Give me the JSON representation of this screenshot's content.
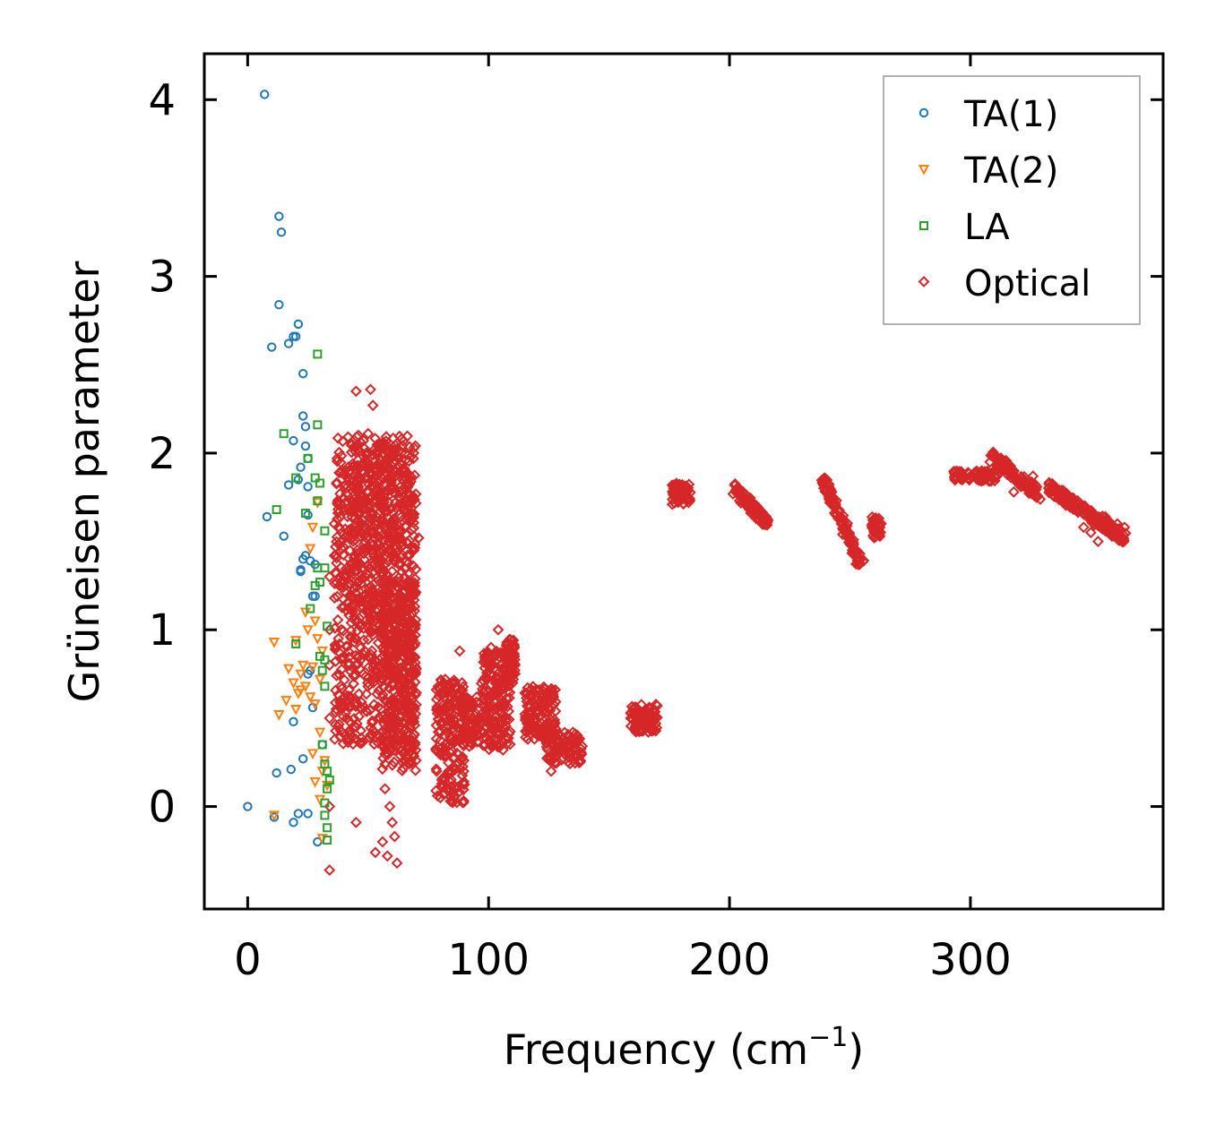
{
  "chart_data": {
    "type": "scatter",
    "title": "",
    "xlabel": "Frequency (cm",
    "xlabel_sup": "−1",
    "xlabel_close": ")",
    "ylabel": "Grüneisen parameter",
    "xlim": [
      -18,
      380
    ],
    "ylim": [
      -0.58,
      4.26
    ],
    "x_ticks": [
      0,
      100,
      200,
      300
    ],
    "x_tick_labels": [
      "0",
      "100",
      "200",
      "300"
    ],
    "y_ticks": [
      0,
      1,
      2,
      3,
      4
    ],
    "y_tick_labels": [
      "0",
      "1",
      "2",
      "3",
      "4"
    ],
    "grid": false,
    "legend_position": "top-right",
    "series": [
      {
        "name": "TA(1)",
        "marker": "circle",
        "color": "#1f77b4",
        "points": [
          [
            7,
            4.03
          ],
          [
            13,
            3.34
          ],
          [
            14,
            3.25
          ],
          [
            13,
            2.84
          ],
          [
            21,
            2.73
          ],
          [
            19,
            2.66
          ],
          [
            20,
            2.66
          ],
          [
            17,
            2.62
          ],
          [
            10,
            2.6
          ],
          [
            23,
            2.45
          ],
          [
            23,
            2.21
          ],
          [
            24,
            2.15
          ],
          [
            19,
            2.07
          ],
          [
            24,
            2.04
          ],
          [
            25,
            1.97
          ],
          [
            22,
            1.92
          ],
          [
            21,
            1.85
          ],
          [
            17,
            1.82
          ],
          [
            25,
            1.81
          ],
          [
            8,
            1.64
          ],
          [
            25,
            1.65
          ],
          [
            15,
            1.53
          ],
          [
            24,
            1.42
          ],
          [
            26,
            1.39
          ],
          [
            23,
            1.4
          ],
          [
            28,
            1.37
          ],
          [
            22,
            1.34
          ],
          [
            22,
            1.33
          ],
          [
            27,
            1.19
          ],
          [
            28,
            1.19
          ],
          [
            26,
            0.77
          ],
          [
            25,
            0.75
          ],
          [
            27,
            0.56
          ],
          [
            19,
            0.48
          ],
          [
            23,
            0.27
          ],
          [
            18,
            0.21
          ],
          [
            12,
            0.19
          ],
          [
            0,
            0.0
          ],
          [
            25,
            -0.04
          ],
          [
            21,
            -0.04
          ],
          [
            11,
            -0.06
          ],
          [
            19,
            -0.09
          ],
          [
            29,
            -0.2
          ],
          [
            31,
            0.35
          ]
        ]
      },
      {
        "name": "TA(2)",
        "marker": "triangle-down",
        "color": "#ff7f0e",
        "points": [
          [
            11,
            0.93
          ],
          [
            20,
            0.94
          ],
          [
            25,
            1.0
          ],
          [
            29,
            0.95
          ],
          [
            17,
            0.78
          ],
          [
            22,
            0.75
          ],
          [
            27,
            0.79
          ],
          [
            19,
            0.7
          ],
          [
            24,
            0.68
          ],
          [
            30,
            0.72
          ],
          [
            16,
            0.6
          ],
          [
            21,
            0.64
          ],
          [
            26,
            0.62
          ],
          [
            13,
            0.52
          ],
          [
            20,
            0.55
          ],
          [
            28,
            0.58
          ],
          [
            31,
            0.88
          ],
          [
            26,
            1.46
          ],
          [
            27,
            1.58
          ],
          [
            29,
            1.72
          ],
          [
            24,
            1.1
          ],
          [
            28,
            1.05
          ],
          [
            30,
            0.42
          ],
          [
            27,
            0.3
          ],
          [
            31,
            0.2
          ],
          [
            28,
            0.14
          ],
          [
            30,
            0.04
          ],
          [
            31,
            -0.18
          ],
          [
            11,
            -0.05
          ],
          [
            33,
            0.12
          ],
          [
            32,
            0.26
          ],
          [
            23,
            0.8
          ],
          [
            22,
            0.66
          ]
        ]
      },
      {
        "name": "LA",
        "marker": "square",
        "color": "#2ca02c",
        "points": [
          [
            29,
            2.56
          ],
          [
            29,
            2.16
          ],
          [
            15,
            2.11
          ],
          [
            25,
            1.97
          ],
          [
            20,
            1.86
          ],
          [
            28,
            1.86
          ],
          [
            30,
            1.83
          ],
          [
            12,
            1.68
          ],
          [
            24,
            1.66
          ],
          [
            29,
            1.73
          ],
          [
            32,
            1.56
          ],
          [
            29,
            1.35
          ],
          [
            32,
            1.35
          ],
          [
            30,
            1.27
          ],
          [
            28,
            1.25
          ],
          [
            26,
            1.12
          ],
          [
            33,
            1.02
          ],
          [
            20,
            0.92
          ],
          [
            30,
            0.85
          ],
          [
            32,
            0.83
          ],
          [
            31,
            0.77
          ],
          [
            32,
            0.68
          ],
          [
            31,
            0.35
          ],
          [
            32,
            0.24
          ],
          [
            33,
            0.2
          ],
          [
            33,
            0.1
          ],
          [
            34,
            0.15
          ],
          [
            32,
            0.02
          ],
          [
            32,
            -0.05
          ],
          [
            33,
            -0.12
          ],
          [
            33,
            -0.19
          ]
        ]
      },
      {
        "name": "Optical",
        "marker": "diamond",
        "color": "#d62728",
        "points": [
          [
            45,
            2.35
          ],
          [
            51,
            2.36
          ],
          [
            52,
            2.27
          ],
          [
            46,
            2.1
          ],
          [
            50,
            2.11
          ],
          [
            55,
            2.05
          ],
          [
            61,
            1.99
          ],
          [
            58,
            1.93
          ],
          [
            64,
            1.88
          ],
          [
            64,
            1.79
          ],
          [
            42,
            1.67
          ],
          [
            36,
            1.42
          ],
          [
            38,
            1.25
          ],
          [
            40,
            1.13
          ],
          [
            71,
            1.52
          ],
          [
            69,
            1.45
          ],
          [
            66,
            1.39
          ],
          [
            68,
            1.21
          ],
          [
            65,
            1.1
          ],
          [
            45,
            0.95
          ],
          [
            56,
            0.97
          ],
          [
            60,
            0.92
          ],
          [
            42,
            0.8
          ],
          [
            48,
            0.75
          ],
          [
            56,
            0.78
          ],
          [
            70,
            0.78
          ],
          [
            58,
            0.71
          ],
          [
            45,
            0.59
          ],
          [
            45,
            0.45
          ],
          [
            61,
            0.53
          ],
          [
            69,
            0.48
          ],
          [
            45,
            0.38
          ],
          [
            57,
            0.44
          ],
          [
            59,
            0.41
          ],
          [
            64,
            0.36
          ],
          [
            58,
            0.3
          ],
          [
            66,
            0.28
          ],
          [
            57,
            0.24
          ],
          [
            57,
            0.1
          ],
          [
            59,
            0.0
          ],
          [
            60,
            -0.09
          ],
          [
            45,
            -0.09
          ],
          [
            61,
            -0.17
          ],
          [
            56,
            -0.2
          ],
          [
            53,
            -0.26
          ],
          [
            58,
            -0.28
          ],
          [
            62,
            -0.32
          ],
          [
            34,
            -0.36
          ],
          [
            34,
            0.0
          ],
          [
            34,
            0.5
          ],
          [
            34,
            0.8
          ],
          [
            34,
            1.0
          ],
          [
            34,
            1.3
          ],
          [
            36,
            1.6
          ],
          [
            82,
            0.72
          ],
          [
            84,
            0.58
          ],
          [
            86,
            0.46
          ],
          [
            80,
            0.3
          ],
          [
            81,
            0.16
          ],
          [
            80,
            0.05
          ],
          [
            83,
            0.1
          ],
          [
            88,
            0.88
          ],
          [
            91,
            0.43
          ],
          [
            92,
            0.34
          ],
          [
            89,
            0.7
          ],
          [
            96,
            0.49
          ],
          [
            99,
            0.6
          ],
          [
            102,
            0.55
          ],
          [
            101,
            0.9
          ],
          [
            104,
            1.0
          ],
          [
            105,
            0.87
          ],
          [
            108,
            0.82
          ],
          [
            111,
            0.8
          ],
          [
            110,
            0.7
          ],
          [
            101,
            0.42
          ],
          [
            104,
            0.38
          ],
          [
            106,
            0.32
          ],
          [
            121,
            0.66
          ],
          [
            117,
            0.57
          ],
          [
            125,
            0.56
          ],
          [
            116,
            0.47
          ],
          [
            119,
            0.42
          ],
          [
            124,
            0.38
          ],
          [
            126,
            0.2
          ],
          [
            130,
            0.33
          ],
          [
            137,
            0.38
          ],
          [
            133,
            0.34
          ],
          [
            160,
            0.55
          ],
          [
            163,
            0.52
          ],
          [
            166,
            0.49
          ],
          [
            165,
            0.44
          ],
          [
            178,
            1.8
          ],
          [
            180,
            1.78
          ],
          [
            182,
            1.74
          ],
          [
            204,
            1.8
          ],
          [
            208,
            1.74
          ],
          [
            213,
            1.66
          ],
          [
            216,
            1.62
          ],
          [
            239,
            1.84
          ],
          [
            243,
            1.7
          ],
          [
            247,
            1.54
          ],
          [
            251,
            1.45
          ],
          [
            254,
            1.37
          ],
          [
            260,
            1.56
          ],
          [
            262,
            1.63
          ],
          [
            295,
            1.88
          ],
          [
            300,
            1.87
          ],
          [
            305,
            1.86
          ],
          [
            310,
            1.97
          ],
          [
            314,
            1.95
          ],
          [
            318,
            1.9
          ],
          [
            322,
            1.83
          ],
          [
            326,
            1.87
          ],
          [
            334,
            1.79
          ],
          [
            340,
            1.72
          ],
          [
            344,
            1.68
          ],
          [
            347,
            1.58
          ],
          [
            350,
            1.55
          ],
          [
            353,
            1.5
          ],
          [
            356,
            1.64
          ],
          [
            361,
            1.6
          ],
          [
            364,
            1.58
          ],
          [
            318,
            1.78
          ],
          [
            324,
            1.8
          ]
        ],
        "clusters": [
          {
            "x": [
              36,
              70
            ],
            "y": [
              0.35,
              2.1
            ],
            "shape": "band",
            "count": 820
          },
          {
            "x": [
              43,
              67
            ],
            "y": [
              1.05,
              2.05
            ],
            "shape": "band",
            "count": 260
          },
          {
            "x": [
              55,
              70
            ],
            "y": [
              0.2,
              1.3
            ],
            "shape": "band",
            "count": 260
          },
          {
            "x": [
              78,
              90
            ],
            "y": [
              0.02,
              0.72
            ],
            "shape": "band",
            "count": 180
          },
          {
            "x": [
              89,
              96
            ],
            "y": [
              0.35,
              0.62
            ],
            "shape": "band",
            "count": 80
          },
          {
            "x": [
              97,
              109
            ],
            "y": [
              0.32,
              0.88
            ],
            "shape": "band",
            "count": 190
          },
          {
            "x": [
              107,
              111
            ],
            "y": [
              0.7,
              0.95
            ],
            "shape": "band",
            "count": 60
          },
          {
            "x": [
              115,
              128
            ],
            "y": [
              0.38,
              0.68
            ],
            "shape": "band",
            "count": 130
          },
          {
            "x": [
              124,
              139
            ],
            "y": [
              0.24,
              0.42
            ],
            "shape": "band",
            "count": 90
          },
          {
            "x": [
              159,
              170
            ],
            "y": [
              0.42,
              0.58
            ],
            "shape": "band",
            "count": 90
          },
          {
            "x": [
              176,
              184
            ],
            "y": [
              1.71,
              1.83
            ],
            "shape": "band",
            "count": 60
          },
          {
            "x": [
              202,
              216
            ],
            "y": [
              1.6,
              1.8
            ],
            "shape": "line",
            "count": 90
          },
          {
            "x": [
              239,
              255
            ],
            "y": [
              1.36,
              1.84
            ],
            "shape": "line",
            "count": 110
          },
          {
            "x": [
              259,
              263
            ],
            "y": [
              1.52,
              1.64
            ],
            "shape": "band",
            "count": 30
          },
          {
            "x": [
              293,
              312
            ],
            "y": [
              1.84,
              1.9
            ],
            "shape": "band",
            "count": 70
          },
          {
            "x": [
              309,
              328
            ],
            "y": [
              1.77,
              1.98
            ],
            "shape": "line",
            "count": 100
          },
          {
            "x": [
              333,
              364
            ],
            "y": [
              1.52,
              1.8
            ],
            "shape": "line",
            "count": 180
          }
        ]
      }
    ]
  }
}
